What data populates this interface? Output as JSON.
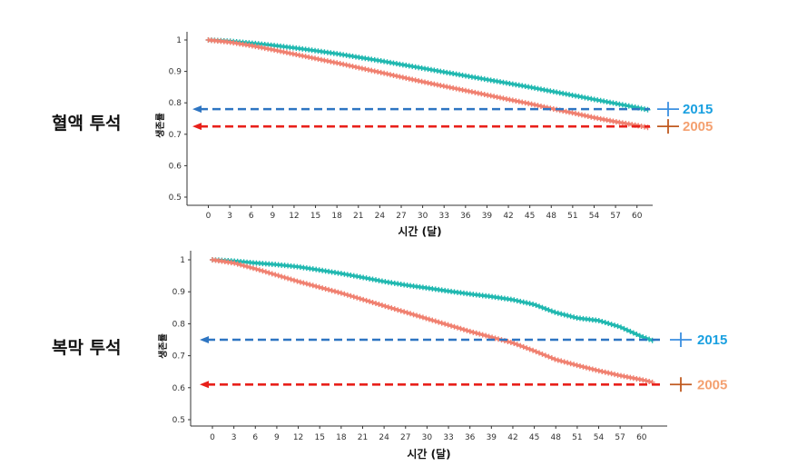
{
  "chart_data": [
    {
      "type": "line",
      "title": "혈액 투석",
      "xlabel": "시간 (달)",
      "ylabel": "생존률",
      "xlim": [
        0,
        62
      ],
      "ylim": [
        0.5,
        1.0
      ],
      "x_ticks": [
        0,
        3,
        6,
        9,
        12,
        15,
        18,
        21,
        24,
        27,
        30,
        33,
        36,
        39,
        42,
        45,
        48,
        51,
        54,
        57,
        60
      ],
      "y_ticks": [
        0.5,
        0.6,
        0.7,
        0.8,
        0.9,
        1.0
      ],
      "grid": false,
      "series": [
        {
          "name": "2015",
          "color": "#20b8b0",
          "x": [
            0,
            3,
            6,
            9,
            12,
            15,
            18,
            21,
            24,
            27,
            30,
            33,
            36,
            39,
            42,
            45,
            48,
            51,
            54,
            57,
            60,
            61.5
          ],
          "values": [
            1.0,
            0.996,
            0.99,
            0.983,
            0.975,
            0.966,
            0.956,
            0.945,
            0.934,
            0.922,
            0.91,
            0.898,
            0.886,
            0.874,
            0.862,
            0.85,
            0.837,
            0.824,
            0.811,
            0.798,
            0.785,
            0.778
          ]
        },
        {
          "name": "2005",
          "color": "#f08070",
          "x": [
            0,
            3,
            6,
            9,
            12,
            15,
            18,
            21,
            24,
            27,
            30,
            33,
            36,
            39,
            42,
            45,
            48,
            51,
            54,
            57,
            60,
            61.5
          ],
          "values": [
            1.0,
            0.993,
            0.982,
            0.969,
            0.955,
            0.941,
            0.927,
            0.912,
            0.897,
            0.882,
            0.867,
            0.853,
            0.839,
            0.825,
            0.811,
            0.797,
            0.782,
            0.768,
            0.753,
            0.74,
            0.728,
            0.722
          ]
        }
      ],
      "reference_lines": [
        {
          "label": "2015",
          "y": 0.78,
          "color": "#2e75c2",
          "label_color": "#1aa0e0"
        },
        {
          "label": "2005",
          "y": 0.725,
          "color": "#e8201a",
          "label_color": "#f4a070"
        }
      ]
    },
    {
      "type": "line",
      "title": "복막 투석",
      "xlabel": "시간 (달)",
      "ylabel": "생존률",
      "xlim": [
        0,
        62
      ],
      "ylim": [
        0.5,
        1.0
      ],
      "x_ticks": [
        0,
        3,
        6,
        9,
        12,
        15,
        18,
        21,
        24,
        27,
        30,
        33,
        36,
        39,
        42,
        45,
        48,
        51,
        54,
        57,
        60
      ],
      "y_ticks": [
        0.5,
        0.6,
        0.7,
        0.8,
        0.9,
        1.0
      ],
      "grid": false,
      "series": [
        {
          "name": "2015",
          "color": "#20b8b0",
          "x": [
            0,
            3,
            6,
            9,
            12,
            15,
            18,
            21,
            24,
            27,
            30,
            33,
            36,
            39,
            42,
            45,
            48,
            51,
            54,
            57,
            60,
            61.5
          ],
          "values": [
            1.0,
            0.996,
            0.99,
            0.985,
            0.978,
            0.968,
            0.957,
            0.945,
            0.932,
            0.921,
            0.912,
            0.902,
            0.893,
            0.885,
            0.875,
            0.86,
            0.835,
            0.818,
            0.81,
            0.79,
            0.76,
            0.748
          ]
        },
        {
          "name": "2005",
          "color": "#f08070",
          "x": [
            0,
            3,
            6,
            9,
            12,
            15,
            18,
            21,
            24,
            27,
            30,
            33,
            36,
            39,
            42,
            45,
            48,
            51,
            54,
            57,
            60,
            61.5
          ],
          "values": [
            1.0,
            0.99,
            0.972,
            0.952,
            0.932,
            0.914,
            0.896,
            0.876,
            0.856,
            0.836,
            0.816,
            0.796,
            0.776,
            0.758,
            0.74,
            0.715,
            0.688,
            0.67,
            0.653,
            0.638,
            0.625,
            0.617
          ]
        }
      ],
      "reference_lines": [
        {
          "label": "2015",
          "y": 0.75,
          "color": "#2e75c2",
          "label_color": "#1aa0e0"
        },
        {
          "label": "2005",
          "y": 0.61,
          "color": "#e8201a",
          "label_color": "#f4a070"
        }
      ]
    }
  ]
}
